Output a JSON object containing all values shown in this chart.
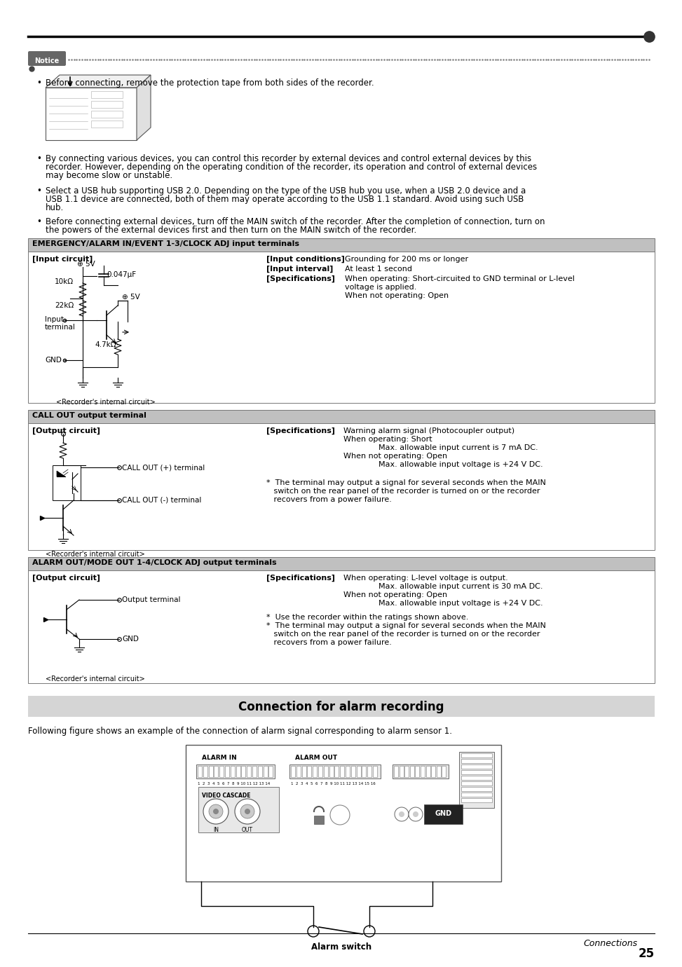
{
  "page_bg": "#ffffff",
  "notice_text": "Notice",
  "bullet_text_1": "Before connecting, remove the protection tape from both sides of the recorder.",
  "bullet_text_2a": "By connecting various devices, you can control this recorder by external devices and control external devices by this",
  "bullet_text_2b": "recorder. However, depending on the operating condition of the recorder, its operation and control of external devices",
  "bullet_text_2c": "may become slow or unstable.",
  "bullet_text_3a": "Select a USB hub supporting USB 2.0. Depending on the type of the USB hub you use, when a USB 2.0 device and a",
  "bullet_text_3b": "USB 1.1 device are connected, both of them may operate according to the USB 1.1 standard. Avoid using such USB",
  "bullet_text_3c": "hub.",
  "bullet_text_4a": "Before connecting external devices, turn off the MAIN switch of the recorder. After the completion of connection, turn on",
  "bullet_text_4b": "the powers of the external devices first and then turn on the MAIN switch of the recorder.",
  "box1_title": "EMERGENCY/ALARM IN/EVENT 1-3/CLOCK ADJ input terminals",
  "box1_left_label": "[Input circuit]",
  "box1_right_label1": "[Input conditions]",
  "box1_right_label2": "[Input interval]",
  "box1_right_label3": "[Specifications]",
  "box1_right_text1": "Grounding for 200 ms or longer",
  "box1_right_text2": "At least 1 second",
  "box1_right_text3a": "When operating: Short-circuited to GND terminal or L-level",
  "box1_right_text3b": "voltage is applied.",
  "box1_right_text3c": "When not operating: Open",
  "box2_title": "CALL OUT output terminal",
  "box2_left_label": "[Output circuit]",
  "box2_right_label": "[Specifications]",
  "box2_spec1": "Warning alarm signal (Photocoupler output)",
  "box2_spec2": "When operating: Short",
  "box2_spec3": "Max. allowable input current is 7 mA DC.",
  "box2_spec4": "When not operating: Open",
  "box2_spec5": "Max. allowable input voltage is +24 V DC.",
  "box2_note1": "*  The terminal may output a signal for several seconds when the MAIN",
  "box2_note2": "   switch on the rear panel of the recorder is turned on or the recorder",
  "box2_note3": "   recovers from a power failure.",
  "box2_callout_pos": "CALL OUT (+) terminal",
  "box2_callout_neg": "CALL OUT (-) terminal",
  "box2_internal": "<Recorder's internal circuit>",
  "box3_title": "ALARM OUT/MODE OUT 1-4/CLOCK ADJ output terminals",
  "box3_left_label": "[Output circuit]",
  "box3_right_label": "[Specifications]",
  "box3_spec1": "When operating: L-level voltage is output.",
  "box3_spec2": "Max. allowable input current is 30 mA DC.",
  "box3_spec3": "When not operating: Open",
  "box3_spec4": "Max. allowable input voltage is +24 V DC.",
  "box3_note1": "*  Use the recorder within the ratings shown above.",
  "box3_note2": "*  The terminal may output a signal for several seconds when the MAIN",
  "box3_note3": "   switch on the rear panel of the recorder is turned on or the recorder",
  "box3_note4": "   recovers from a power failure.",
  "box3_output": "Output terminal",
  "box3_gnd": "GND",
  "box3_internal": "<Recorder's internal circuit>",
  "section_title": "Connection for alarm recording",
  "section_desc": "Following figure shows an example of the connection of alarm signal corresponding to alarm sensor 1.",
  "alarm_in_label": "ALARM IN",
  "alarm_out_label": "ALARM OUT",
  "video_cascade": "VIDEO CASCADE",
  "in_label": "IN",
  "out_label": "OUT",
  "gnd_label": "GND",
  "alarm_switch_label": "Alarm switch",
  "footer_text": "Connections",
  "page_number": "25"
}
